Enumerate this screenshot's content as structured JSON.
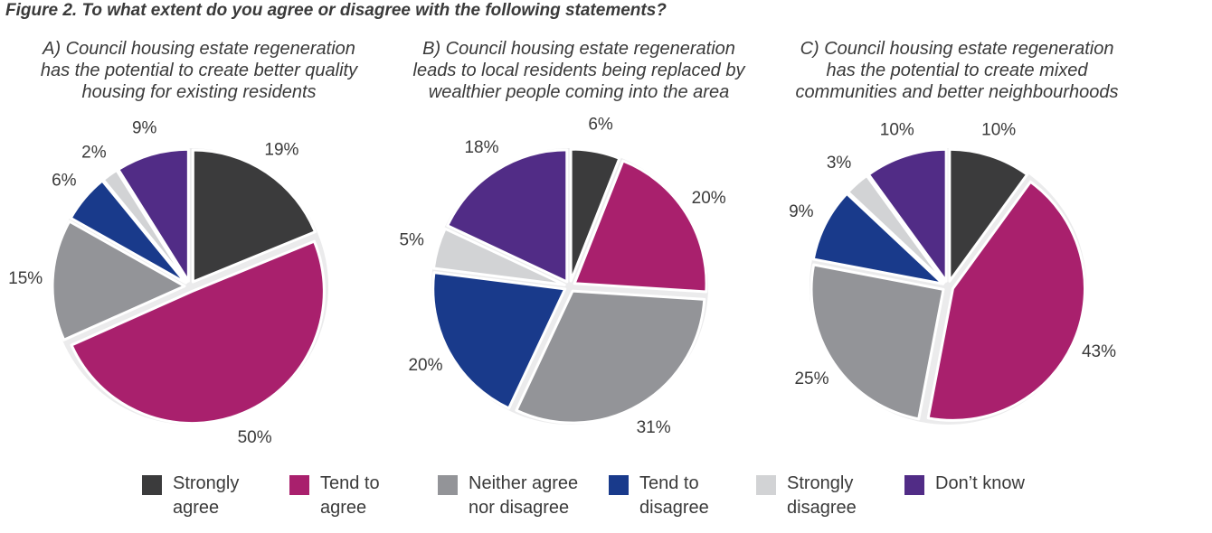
{
  "figure_title": "Figure 2. To what extent do you agree or disagree with the following statements?",
  "legend": [
    {
      "lines": [
        "Strongly",
        "agree"
      ],
      "color": "#3b3b3c"
    },
    {
      "lines": [
        "Tend to",
        "agree"
      ],
      "color": "#a9206d"
    },
    {
      "lines": [
        "Neither agree",
        "nor disagree"
      ],
      "color": "#939498"
    },
    {
      "lines": [
        "Tend to",
        "disagree"
      ],
      "color": "#193a8b"
    },
    {
      "lines": [
        "Strongly",
        "disagree"
      ],
      "color": "#d2d3d5"
    },
    {
      "lines": [
        "Don’t know"
      ],
      "color": "#512c86"
    }
  ],
  "chart_data": [
    {
      "type": "pie",
      "title_lines": [
        "A) Council housing estate regeneration",
        "has the potential to create better quality",
        "housing for existing residents"
      ],
      "categories": [
        "Strongly agree",
        "Tend to agree",
        "Neither agree nor disagree",
        "Tend to disagree",
        "Strongly disagree",
        "Don’t know"
      ],
      "values": [
        19,
        50,
        15,
        6,
        2,
        9
      ],
      "labels": [
        "19%",
        "50%",
        "15%",
        "6%",
        "2%",
        "9%"
      ]
    },
    {
      "type": "pie",
      "title_lines": [
        "B) Council housing estate regeneration",
        "leads to local residents being replaced by",
        "wealthier people coming into the area"
      ],
      "categories": [
        "Strongly agree",
        "Tend to agree",
        "Neither agree nor disagree",
        "Tend to disagree",
        "Strongly disagree",
        "Don’t know"
      ],
      "values": [
        6,
        20,
        31,
        20,
        5,
        18
      ],
      "labels": [
        "6%",
        "20%",
        "31%",
        "20%",
        "5%",
        "18%"
      ]
    },
    {
      "type": "pie",
      "title_lines": [
        "C) Council housing estate regeneration",
        "has the potential to create mixed",
        "communities and better neighbourhoods"
      ],
      "categories": [
        "Strongly agree",
        "Tend to agree",
        "Neither agree nor disagree",
        "Tend to disagree",
        "Strongly disagree",
        "Don’t know"
      ],
      "values": [
        10,
        43,
        25,
        9,
        3,
        10
      ],
      "labels": [
        "10%",
        "43%",
        "25%",
        "9%",
        "3%",
        "10%"
      ]
    }
  ]
}
